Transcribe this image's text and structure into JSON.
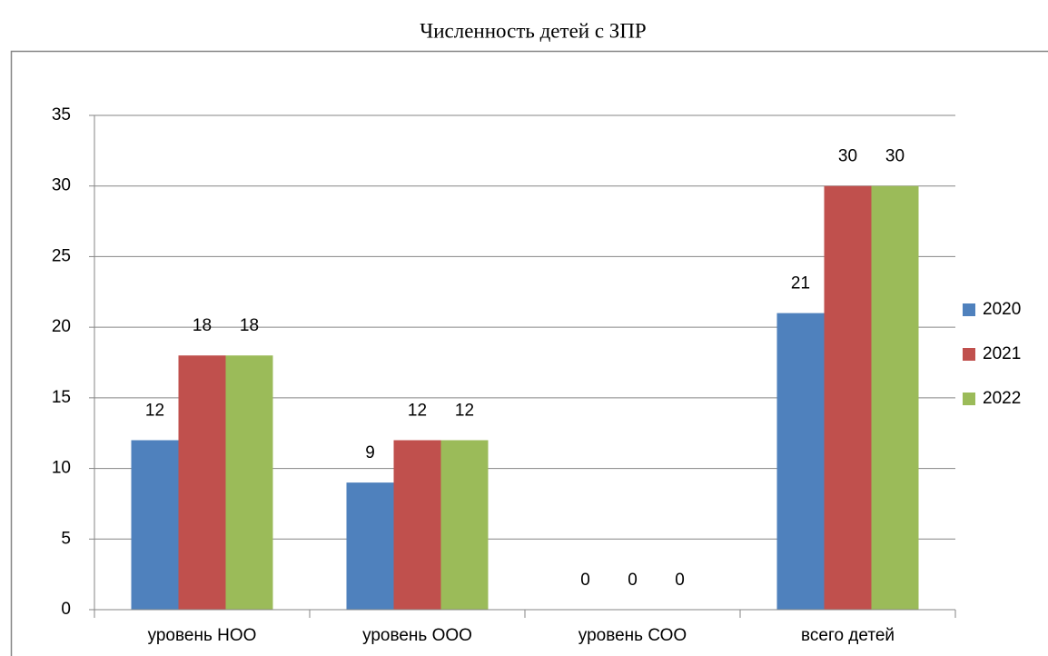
{
  "chart_data": {
    "type": "bar",
    "title": "Численность детей с ЗПР",
    "categories": [
      "уровень НОО",
      "уровень ООО",
      "уровень СОО",
      "всего детей"
    ],
    "series": [
      {
        "name": "2020",
        "color": "#4f81bd",
        "values": [
          12,
          9,
          0,
          21
        ]
      },
      {
        "name": "2021",
        "color": "#c0504d",
        "values": [
          18,
          12,
          0,
          30
        ]
      },
      {
        "name": "2022",
        "color": "#9bbb59",
        "values": [
          18,
          12,
          0,
          30
        ]
      }
    ],
    "ylim": [
      0,
      35
    ],
    "yticks": [
      0,
      5,
      10,
      15,
      20,
      25,
      30,
      35
    ],
    "grid": true,
    "legend": "right"
  }
}
